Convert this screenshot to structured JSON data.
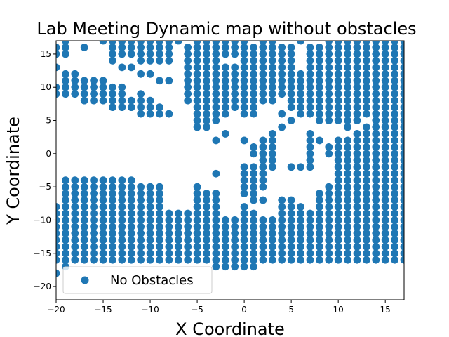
{
  "chart_data": {
    "type": "scatter",
    "title": "Lab Meeting Dynamic map without obstacles",
    "xlabel": "X Coordinate",
    "ylabel": "Y Coordinate",
    "xlim": [
      -20,
      17
    ],
    "ylim": [
      -22,
      17
    ],
    "xticks": [
      -20,
      -15,
      -10,
      -5,
      0,
      5,
      10,
      15
    ],
    "yticks": [
      -20,
      -15,
      -10,
      -5,
      0,
      5,
      10,
      15
    ],
    "grid": false,
    "legend_position": "lower-left",
    "series": [
      {
        "name": "No Obstacles",
        "color": "#1f77b4",
        "columns": [
          {
            "x": -20,
            "y": [
              16,
              15,
              13,
              10,
              9,
              -8,
              -9,
              -10,
              -11,
              -12,
              -13,
              -14,
              -15,
              -16,
              -18
            ]
          },
          {
            "x": -19,
            "y": [
              17,
              16,
              15,
              12,
              11,
              10,
              9,
              -4,
              -5,
              -6,
              -7,
              -8,
              -9,
              -10,
              -11,
              -12,
              -13,
              -14,
              -15,
              -16,
              -17
            ]
          },
          {
            "x": -18,
            "y": [
              12,
              11,
              10,
              9,
              -4,
              -5,
              -6,
              -7,
              -8,
              -9,
              -10,
              -11,
              -12,
              -13,
              -14,
              -15,
              -16
            ]
          },
          {
            "x": -17,
            "y": [
              16,
              11,
              10,
              9,
              8,
              -4,
              -5,
              -6,
              -7,
              -8,
              -9,
              -10,
              -11,
              -12,
              -13,
              -14,
              -15,
              -16
            ]
          },
          {
            "x": -16,
            "y": [
              11,
              10,
              9,
              8,
              -4,
              -5,
              -6,
              -7,
              -8,
              -9,
              -10,
              -11,
              -12,
              -13,
              -14,
              -15,
              -16
            ]
          },
          {
            "x": -15,
            "y": [
              17,
              11,
              10,
              9,
              8,
              -4,
              -5,
              -6,
              -7,
              -8,
              -9,
              -10,
              -11,
              -12,
              -13,
              -14,
              -15,
              -16
            ]
          },
          {
            "x": -14,
            "y": [
              17,
              16,
              15,
              14,
              10,
              9,
              8,
              7,
              -4,
              -5,
              -6,
              -7,
              -8,
              -9,
              -10,
              -11,
              -12,
              -13,
              -14,
              -15,
              -16
            ]
          },
          {
            "x": -13,
            "y": [
              17,
              16,
              15,
              13,
              10,
              9,
              8,
              7,
              -4,
              -5,
              -6,
              -7,
              -8,
              -9,
              -10,
              -11,
              -12,
              -13,
              -14,
              -15,
              -16
            ]
          },
          {
            "x": -12,
            "y": [
              17,
              16,
              15,
              13,
              8,
              7,
              -4,
              -5,
              -6,
              -7,
              -8,
              -9,
              -10,
              -11,
              -12,
              -13,
              -14,
              -15,
              -16
            ]
          },
          {
            "x": -11,
            "y": [
              17,
              16,
              15,
              14,
              12,
              9,
              8,
              7,
              6,
              -5,
              -6,
              -7,
              -8,
              -9,
              -10,
              -11,
              -12,
              -13,
              -14,
              -15,
              -16
            ]
          },
          {
            "x": -10,
            "y": [
              17,
              16,
              15,
              14,
              12,
              8,
              7,
              6,
              -5,
              -6,
              -7,
              -8,
              -9,
              -10,
              -11,
              -12,
              -13,
              -14,
              -15,
              -16
            ]
          },
          {
            "x": -9,
            "y": [
              17,
              16,
              15,
              14,
              11,
              7,
              6,
              -5,
              -6,
              -7,
              -8,
              -9,
              -10,
              -11,
              -12,
              -13,
              -14,
              -15,
              -16
            ]
          },
          {
            "x": -8,
            "y": [
              17,
              16,
              15,
              14,
              11,
              6,
              -9,
              -10,
              -11,
              -12,
              -13,
              -14,
              -15,
              -16
            ]
          },
          {
            "x": -7,
            "y": [
              17,
              -9,
              -10,
              -11,
              -12,
              -13,
              -14,
              -15,
              -16
            ]
          },
          {
            "x": -6,
            "y": [
              16,
              15,
              14,
              13,
              12,
              11,
              10,
              9,
              8,
              -9,
              -10,
              -11,
              -12,
              -13,
              -14,
              -15,
              -16
            ]
          },
          {
            "x": -5,
            "y": [
              17,
              16,
              15,
              14,
              13,
              12,
              11,
              10,
              9,
              8,
              7,
              6,
              5,
              4,
              -5,
              -6,
              -7,
              -8,
              -9,
              -10,
              -11,
              -12,
              -13,
              -14,
              -15,
              -16
            ]
          },
          {
            "x": -4,
            "y": [
              17,
              16,
              15,
              14,
              13,
              12,
              11,
              10,
              9,
              8,
              7,
              6,
              5,
              4,
              -6,
              -7,
              -8,
              -9,
              -10,
              -11,
              -12,
              -13,
              -14,
              -15,
              -16
            ]
          },
          {
            "x": -3,
            "y": [
              17,
              16,
              15,
              14,
              13,
              12,
              11,
              10,
              9,
              8,
              7,
              6,
              5,
              2,
              -3,
              -6,
              -7,
              -8,
              -9,
              -10,
              -11,
              -12,
              -13,
              -14,
              -15,
              -16,
              -17
            ]
          },
          {
            "x": -2,
            "y": [
              17,
              16,
              15,
              13,
              12,
              11,
              10,
              9,
              8,
              7,
              6,
              3,
              -10,
              -11,
              -12,
              -13,
              -14,
              -15,
              -16,
              -17
            ]
          },
          {
            "x": -1,
            "y": [
              17,
              16,
              15,
              13,
              12,
              11,
              10,
              9,
              8,
              7,
              -10,
              -11,
              -12,
              -13,
              -14,
              -15,
              -16,
              -17
            ]
          },
          {
            "x": 0,
            "y": [
              17,
              16,
              15,
              14,
              13,
              12,
              11,
              10,
              9,
              8,
              7,
              6,
              2,
              -2,
              -3,
              -4,
              -5,
              -6,
              -8,
              -9,
              -10,
              -11,
              -12,
              -13,
              -14,
              -15,
              -16,
              -17
            ]
          },
          {
            "x": 1,
            "y": [
              16,
              15,
              14,
              13,
              12,
              11,
              10,
              9,
              8,
              7,
              6,
              1,
              0,
              -2,
              -3,
              -4,
              -5,
              -6,
              -7,
              -9,
              -10,
              -11,
              -12,
              -13,
              -14,
              -15,
              -16,
              -17
            ]
          },
          {
            "x": 2,
            "y": [
              17,
              16,
              15,
              14,
              13,
              12,
              11,
              10,
              9,
              8,
              2,
              1,
              0,
              -1,
              -2,
              -3,
              -4,
              -5,
              -7,
              -10,
              -11,
              -12,
              -13,
              -14,
              -15,
              -16
            ]
          },
          {
            "x": 3,
            "y": [
              17,
              16,
              15,
              14,
              13,
              12,
              11,
              10,
              9,
              8,
              3,
              2,
              1,
              0,
              -1,
              -2,
              -10,
              -11,
              -12,
              -13,
              -14,
              -15,
              -16
            ]
          },
          {
            "x": 4,
            "y": [
              16,
              15,
              14,
              13,
              12,
              11,
              10,
              9,
              6,
              4,
              -7,
              -8,
              -9,
              -10,
              -11,
              -12,
              -13,
              -14,
              -15,
              -16
            ]
          },
          {
            "x": 5,
            "y": [
              16,
              15,
              14,
              13,
              12,
              11,
              10,
              9,
              8,
              7,
              5,
              -2,
              -7,
              -8,
              -9,
              -10,
              -11,
              -12,
              -13,
              -14,
              -15,
              -16
            ]
          },
          {
            "x": 6,
            "y": [
              17,
              12,
              11,
              10,
              9,
              8,
              7,
              6,
              -2,
              -8,
              -9,
              -10,
              -11,
              -12,
              -13,
              -14,
              -15,
              -16
            ]
          },
          {
            "x": 7,
            "y": [
              16,
              15,
              14,
              13,
              12,
              11,
              10,
              9,
              8,
              7,
              6,
              3,
              2,
              1,
              0,
              -1,
              -2,
              -9,
              -10,
              -11,
              -12,
              -13,
              -14,
              -15,
              -16
            ]
          },
          {
            "x": 8,
            "y": [
              16,
              15,
              14,
              13,
              12,
              11,
              10,
              9,
              8,
              7,
              6,
              5,
              2,
              -6,
              -7,
              -8,
              -9,
              -10,
              -11,
              -12,
              -13,
              -14,
              -15,
              -16
            ]
          },
          {
            "x": 9,
            "y": [
              17,
              16,
              15,
              14,
              13,
              12,
              11,
              10,
              9,
              8,
              7,
              6,
              5,
              1,
              0,
              -5,
              -6,
              -7,
              -8,
              -9,
              -10,
              -11,
              -12,
              -13,
              -14,
              -15,
              -16
            ]
          },
          {
            "x": 10,
            "y": [
              17,
              16,
              15,
              14,
              13,
              12,
              11,
              10,
              9,
              8,
              7,
              6,
              5,
              2,
              1,
              0,
              -1,
              -2,
              -3,
              -4,
              -5,
              -6,
              -7,
              -8,
              -9,
              -10,
              -11,
              -12,
              -13,
              -14,
              -15,
              -16
            ]
          },
          {
            "x": 11,
            "y": [
              17,
              16,
              15,
              14,
              13,
              12,
              11,
              10,
              9,
              8,
              7,
              6,
              5,
              4,
              2,
              1,
              0,
              -1,
              -2,
              -3,
              -4,
              -5,
              -6,
              -7,
              -8,
              -9,
              -10,
              -11,
              -12,
              -13,
              -14,
              -15,
              -16
            ]
          },
          {
            "x": 12,
            "y": [
              17,
              16,
              15,
              14,
              13,
              12,
              11,
              10,
              9,
              8,
              7,
              6,
              5,
              3,
              2,
              1,
              0,
              -1,
              -2,
              -3,
              -4,
              -5,
              -6,
              -7,
              -8,
              -9,
              -10,
              -11,
              -12,
              -13,
              -14,
              -15,
              -16
            ]
          },
          {
            "x": 13,
            "y": [
              17,
              16,
              15,
              14,
              13,
              12,
              11,
              10,
              9,
              8,
              7,
              6,
              4,
              3,
              2,
              1,
              0,
              -1,
              -2,
              -3,
              -4,
              -5,
              -6,
              -7,
              -8,
              -9,
              -10,
              -11,
              -12,
              -13,
              -14,
              -15,
              -16
            ]
          },
          {
            "x": 14,
            "y": [
              17,
              16,
              15,
              14,
              13,
              12,
              11,
              10,
              9,
              8,
              7,
              6,
              5,
              4,
              3,
              2,
              1,
              0,
              -1,
              -2,
              -3,
              -4,
              -5,
              -6,
              -7,
              -8,
              -9,
              -10,
              -11,
              -12,
              -13,
              -14,
              -15,
              -16
            ]
          },
          {
            "x": 15,
            "y": [
              17,
              16,
              15,
              14,
              13,
              12,
              11,
              10,
              9,
              8,
              7,
              6,
              5,
              4,
              3,
              2,
              1,
              0,
              -1,
              -2,
              -3,
              -4,
              -5,
              -6,
              -7,
              -8,
              -9,
              -10,
              -11,
              -12,
              -13,
              -14,
              -15,
              -16
            ]
          },
          {
            "x": 16,
            "y": [
              17,
              16,
              15,
              14,
              13,
              12,
              11,
              10,
              9,
              8,
              7,
              6,
              5,
              4,
              3,
              2,
              1,
              0,
              -1,
              -2,
              -3,
              -4,
              -5,
              -6,
              -7,
              -8,
              -9,
              -10,
              -11,
              -12,
              -13,
              -14,
              -15,
              -16
            ]
          },
          {
            "x": 17,
            "y": [
              17,
              16,
              15,
              14,
              13,
              12,
              11,
              10,
              9,
              8,
              7,
              6,
              5,
              4,
              3,
              2,
              1,
              0,
              -1,
              -2,
              -3,
              -4,
              -5,
              -6,
              -7,
              -8,
              -9,
              -10,
              -11,
              -12,
              -13,
              -14,
              -15,
              -16
            ]
          }
        ]
      }
    ]
  }
}
